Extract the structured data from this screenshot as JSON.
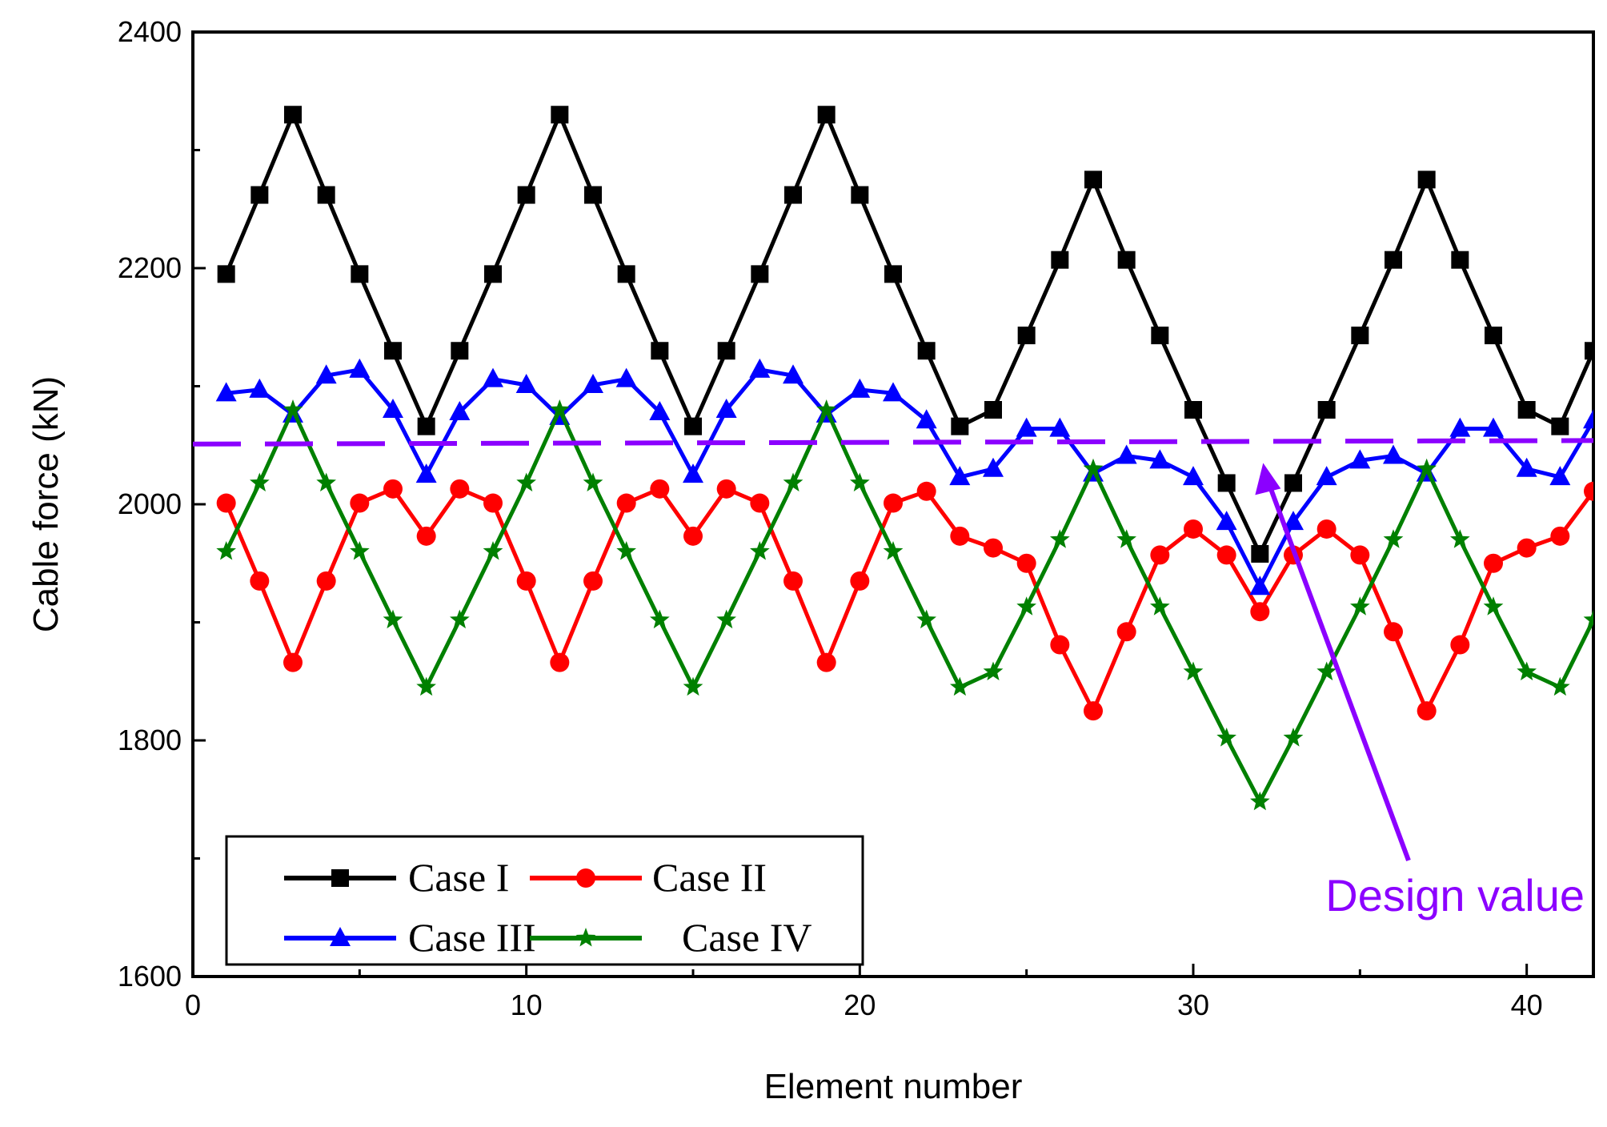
{
  "chart_data": {
    "type": "line",
    "title": "",
    "xlabel": "Element number",
    "ylabel": "Cable force (kN)",
    "xlim": [
      0,
      42
    ],
    "ylim": [
      1600,
      2400
    ],
    "xticks": [
      0,
      10,
      20,
      30,
      40
    ],
    "xtick_labels": [
      "0",
      "10",
      "20",
      "30",
      "40"
    ],
    "yticks": [
      1600,
      1800,
      2000,
      2200,
      2400
    ],
    "ytick_labels": [
      "1600",
      "1800",
      "2000",
      "2200",
      "2400"
    ],
    "legend_position": "bottom-left",
    "x": [
      1,
      2,
      3,
      4,
      5,
      6,
      7,
      8,
      9,
      10,
      11,
      12,
      13,
      14,
      15,
      16,
      17,
      18,
      19,
      20,
      21,
      22,
      23,
      24,
      25,
      26,
      27,
      28,
      29,
      30,
      31,
      32,
      33,
      34,
      35,
      36,
      37,
      38,
      39,
      40,
      41,
      42
    ],
    "series": [
      {
        "name": "Case I",
        "color": "#000000",
        "marker": "square",
        "values": [
          2195,
          2262,
          2330,
          2262,
          2195,
          2130,
          2066,
          2130,
          2195,
          2262,
          2330,
          2262,
          2195,
          2130,
          2066,
          2130,
          2195,
          2262,
          2330,
          2262,
          2195,
          2130,
          2066,
          2080,
          2143,
          2207,
          2275,
          2207,
          2143,
          2080,
          2018,
          1958,
          2018,
          2080,
          2143,
          2207,
          2275,
          2207,
          2143,
          2080,
          2066,
          2130
        ]
      },
      {
        "name": "Case II",
        "color": "#ff0000",
        "marker": "circle",
        "values": [
          2001,
          1935,
          1866,
          1935,
          2001,
          2013,
          1973,
          2013,
          2001,
          1935,
          1866,
          1935,
          2001,
          2013,
          1973,
          2013,
          2001,
          1935,
          1866,
          1935,
          2001,
          2011,
          1973,
          1963,
          1950,
          1881,
          1825,
          1892,
          1957,
          1979,
          1957,
          1909,
          1957,
          1979,
          1957,
          1892,
          1825,
          1881,
          1950,
          1963,
          1973,
          2011
        ]
      },
      {
        "name": "Case III",
        "color": "#0000ff",
        "marker": "triangle",
        "values": [
          2094,
          2097,
          2076,
          2109,
          2114,
          2080,
          2025,
          2078,
          2106,
          2101,
          2074,
          2101,
          2106,
          2078,
          2025,
          2080,
          2114,
          2109,
          2076,
          2097,
          2094,
          2071,
          2023,
          2030,
          2064,
          2064,
          2026,
          2041,
          2037,
          2023,
          1985,
          1930,
          1985,
          2023,
          2037,
          2041,
          2026,
          2064,
          2064,
          2030,
          2023,
          2071
        ]
      },
      {
        "name": "Case IV",
        "color": "#008000",
        "marker": "star",
        "values": [
          1960,
          2018,
          2080,
          2018,
          1960,
          1902,
          1845,
          1902,
          1960,
          2018,
          2080,
          2018,
          1960,
          1902,
          1845,
          1902,
          1960,
          2018,
          2080,
          2018,
          1960,
          1902,
          1845,
          1858,
          1913,
          1970,
          2030,
          1970,
          1913,
          1858,
          1802,
          1748,
          1802,
          1858,
          1913,
          1970,
          2030,
          1970,
          1913,
          1858,
          1845,
          1902
        ]
      },
      {
        "name": "Design value",
        "color": "#8b00ff",
        "style": "dashed",
        "x": [
          0,
          42
        ],
        "values": [
          2051,
          2054
        ]
      }
    ],
    "annotations": [
      {
        "text": "Design value",
        "color": "#8b00ff",
        "arrow_to": [
          32,
          2035
        ]
      }
    ]
  }
}
